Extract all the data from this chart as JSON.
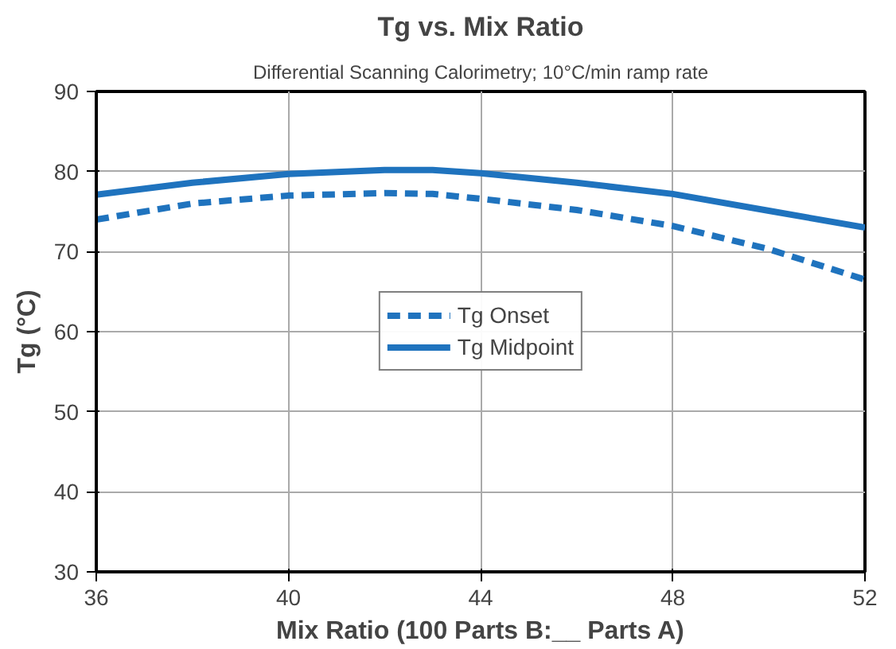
{
  "chart_data": {
    "type": "line",
    "title": "Tg vs. Mix Ratio",
    "subtitle": "Differential Scanning Calorimetry; 10°C/min ramp rate",
    "xlabel": "Mix Ratio (100 Parts B:__ Parts A)",
    "ylabel": "Tg (°C)",
    "x": [
      36,
      38,
      40,
      42,
      43,
      44,
      46,
      48,
      50,
      52
    ],
    "series": [
      {
        "name": "Tg Onset",
        "color": "#1f73be",
        "line_style": "dashed",
        "values": [
          74.0,
          76.0,
          77.0,
          77.3,
          77.2,
          76.6,
          75.2,
          73.2,
          70.3,
          66.5
        ]
      },
      {
        "name": "Tg Midpoint",
        "color": "#1f73be",
        "line_style": "solid",
        "values": [
          77.1,
          78.6,
          79.7,
          80.2,
          80.2,
          79.8,
          78.6,
          77.2,
          75.1,
          73.0
        ]
      }
    ],
    "xlim": [
      36,
      52
    ],
    "xticks": [
      36,
      40,
      44,
      48,
      52
    ],
    "ylim": [
      30,
      90
    ],
    "yticks": [
      30,
      40,
      50,
      60,
      70,
      80,
      90
    ],
    "grid": true,
    "legend": "center",
    "marker": "none"
  }
}
